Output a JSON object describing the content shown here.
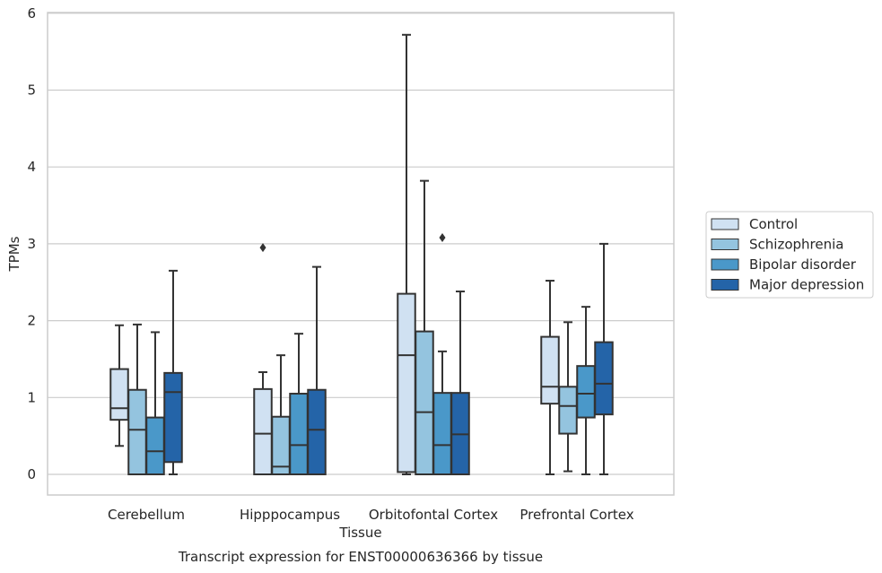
{
  "chart_data": {
    "type": "box",
    "title": "",
    "caption": "Transcript expression for ENST00000636366 by tissue",
    "xlabel": "Tissue",
    "ylabel": "TPMs",
    "ylim": [
      -0.28,
      6.02
    ],
    "yticks": [
      0,
      1,
      2,
      3,
      4,
      5,
      6
    ],
    "grid": "horizontal",
    "legend_position": "right",
    "categories": [
      "Cerebellum",
      "Hipppocampus",
      "Orbitofontal Cortex",
      "Prefrontal Cortex"
    ],
    "series": [
      {
        "name": "Control",
        "color": "#d0e1f2",
        "boxes": [
          {
            "whislo": 0.37,
            "q1": 0.71,
            "med": 0.86,
            "q3": 1.37,
            "whishi": 1.94,
            "fliers": []
          },
          {
            "whislo": 0.0,
            "q1": 0.0,
            "med": 0.53,
            "q3": 1.11,
            "whishi": 1.33,
            "fliers": [
              2.95
            ]
          },
          {
            "whislo": 0.0,
            "q1": 0.03,
            "med": 1.55,
            "q3": 2.35,
            "whishi": 5.72,
            "fliers": []
          },
          {
            "whislo": 0.0,
            "q1": 0.92,
            "med": 1.14,
            "q3": 1.79,
            "whishi": 2.52,
            "fliers": []
          }
        ]
      },
      {
        "name": "Schizophrenia",
        "color": "#94c4df",
        "boxes": [
          {
            "whislo": 0.0,
            "q1": 0.0,
            "med": 0.58,
            "q3": 1.1,
            "whishi": 1.95,
            "fliers": []
          },
          {
            "whislo": 0.0,
            "q1": 0.0,
            "med": 0.1,
            "q3": 0.75,
            "whishi": 1.55,
            "fliers": []
          },
          {
            "whislo": 0.0,
            "q1": 0.0,
            "med": 0.81,
            "q3": 1.86,
            "whishi": 3.82,
            "fliers": []
          },
          {
            "whislo": 0.04,
            "q1": 0.53,
            "med": 0.89,
            "q3": 1.14,
            "whishi": 1.98,
            "fliers": []
          }
        ]
      },
      {
        "name": "Bipolar disorder",
        "color": "#4a98c9",
        "boxes": [
          {
            "whislo": 0.0,
            "q1": 0.0,
            "med": 0.3,
            "q3": 0.74,
            "whishi": 1.85,
            "fliers": []
          },
          {
            "whislo": 0.0,
            "q1": 0.0,
            "med": 0.38,
            "q3": 1.05,
            "whishi": 1.83,
            "fliers": []
          },
          {
            "whislo": 0.0,
            "q1": 0.0,
            "med": 0.38,
            "q3": 1.06,
            "whishi": 1.6,
            "fliers": [
              3.08
            ]
          },
          {
            "whislo": 0.0,
            "q1": 0.74,
            "med": 1.05,
            "q3": 1.41,
            "whishi": 2.18,
            "fliers": []
          }
        ]
      },
      {
        "name": "Major depression",
        "color": "#2464a8",
        "boxes": [
          {
            "whislo": 0.0,
            "q1": 0.16,
            "med": 1.07,
            "q3": 1.32,
            "whishi": 2.65,
            "fliers": []
          },
          {
            "whislo": 0.0,
            "q1": 0.0,
            "med": 0.58,
            "q3": 1.1,
            "whishi": 2.7,
            "fliers": []
          },
          {
            "whislo": 0.0,
            "q1": 0.0,
            "med": 0.52,
            "q3": 1.06,
            "whishi": 2.38,
            "fliers": []
          },
          {
            "whislo": 0.0,
            "q1": 0.78,
            "med": 1.18,
            "q3": 1.72,
            "whishi": 3.0,
            "fliers": []
          }
        ]
      }
    ]
  },
  "colors": {
    "axis_frame": "#cccccc",
    "grid": "#cccccc",
    "box_edge": "#333333",
    "text": "#262626"
  }
}
